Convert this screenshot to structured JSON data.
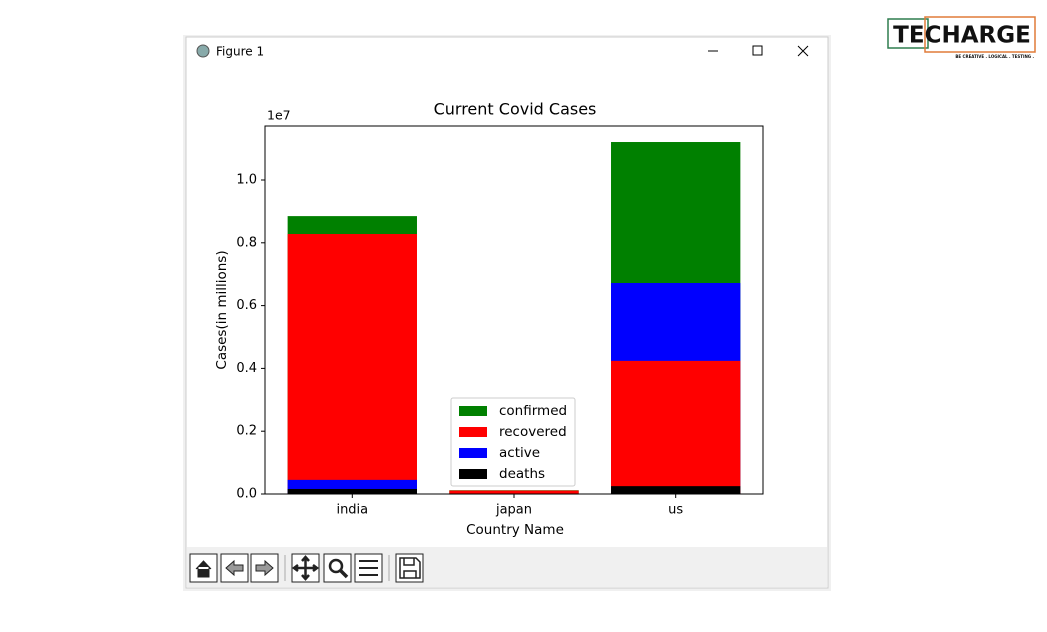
{
  "window": {
    "title": "Figure 1"
  },
  "logo": {
    "name": "TECHARGE",
    "tagline": "BE CREATIVE . LOGICAL . TESTING ."
  },
  "chart_data": {
    "type": "bar",
    "title": "Current Covid Cases",
    "xlabel": "Country Name",
    "ylabel": "Cases(in millions)",
    "offset_text": "1e7",
    "categories": [
      "india",
      "japan",
      "us"
    ],
    "series": [
      {
        "name": "confirmed",
        "color": "#008000",
        "values": [
          0.885,
          0.012,
          1.121
        ]
      },
      {
        "name": "recovered",
        "color": "#ff0000",
        "values": [
          0.828,
          0.011,
          0.424
        ]
      },
      {
        "name": "active",
        "color": "#0000ff",
        "values": [
          0.045,
          0.001,
          0.672
        ]
      },
      {
        "name": "deaths",
        "color": "#000000",
        "values": [
          0.016,
          0.0002,
          0.025
        ]
      }
    ],
    "ylim": [
      0,
      1.172
    ],
    "yticks": [
      {
        "value": 0,
        "label": "0.0"
      },
      0.2,
      0.4,
      0.6,
      0.8,
      {
        "value": 1,
        "label": "1.0"
      }
    ],
    "legend": "lower center"
  }
}
